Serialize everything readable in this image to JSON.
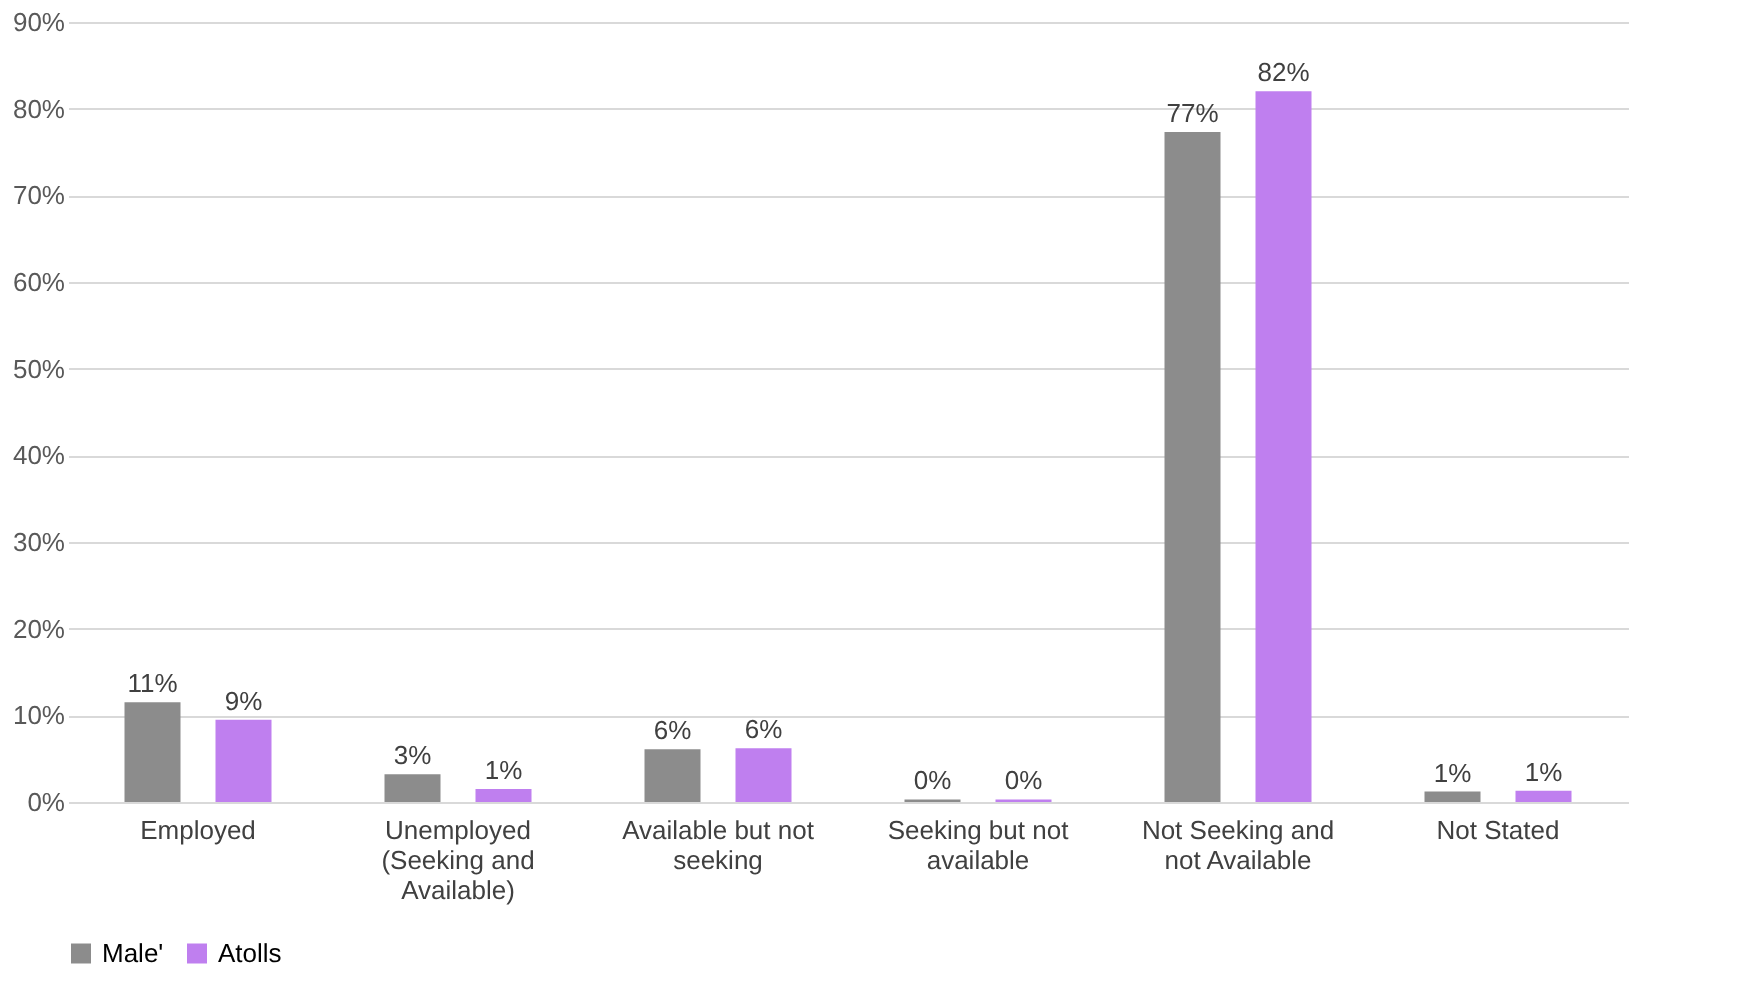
{
  "chart_data": {
    "type": "bar",
    "categories": [
      "Employed",
      "Unemployed (Seeking and Available)",
      "Available but not seeking",
      "Seeking but not available",
      "Not Seeking and not Available",
      "Not Stated"
    ],
    "series": [
      {
        "name": "Male'",
        "color": "#8c8c8c",
        "values": [
          11.5,
          3.2,
          6.1,
          0.3,
          77.3,
          1.2
        ],
        "value_labels": [
          "11%",
          "3%",
          "6%",
          "0%",
          "77%",
          "1%"
        ]
      },
      {
        "name": "Atolls",
        "color": "#bf7fef",
        "values": [
          9.5,
          1.5,
          6.2,
          0.3,
          82.0,
          1.3
        ],
        "value_labels": [
          "9%",
          "1%",
          "6%",
          "0%",
          "82%",
          "1%"
        ]
      }
    ],
    "ylim": [
      0,
      90
    ],
    "yticks": [
      {
        "value": 0,
        "label": "0%"
      },
      {
        "value": 10,
        "label": "10%"
      },
      {
        "value": 20,
        "label": "20%"
      },
      {
        "value": 30,
        "label": "30%"
      },
      {
        "value": 40,
        "label": "40%"
      },
      {
        "value": 50,
        "label": "50%"
      },
      {
        "value": 60,
        "label": "60%"
      },
      {
        "value": 70,
        "label": "70%"
      },
      {
        "value": 80,
        "label": "80%"
      },
      {
        "value": 90,
        "label": "90%"
      }
    ],
    "grid": "y",
    "legend": "bottom"
  }
}
